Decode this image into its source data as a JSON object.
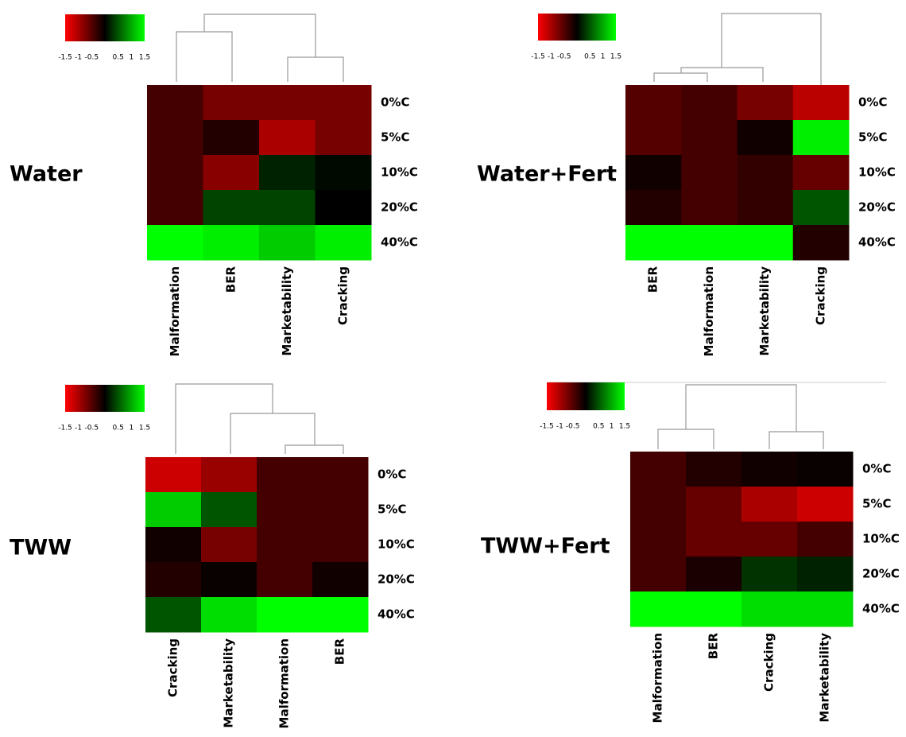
{
  "chart_data": [
    {
      "type": "heatmap",
      "title": "Water",
      "x": [
        "Malformation",
        "BER",
        "Marketability",
        "Cracking"
      ],
      "y": [
        "0%C",
        "5%C",
        "10%C",
        "20%C",
        "40%C"
      ],
      "values": [
        [
          -0.4,
          -0.7,
          -0.7,
          -0.7
        ],
        [
          -0.4,
          -0.2,
          -1.0,
          -0.7
        ],
        [
          -0.4,
          -0.8,
          0.2,
          0.05
        ],
        [
          -0.4,
          0.4,
          0.4,
          0.0
        ],
        [
          1.5,
          1.4,
          1.2,
          1.4
        ]
      ],
      "zlim": [
        -1.5,
        1.5
      ],
      "zticks": [
        -1.5,
        -1,
        -0.5,
        0.5,
        1,
        1.5
      ],
      "colors": [
        "#ff0000",
        "#000000",
        "#00ff00"
      ]
    },
    {
      "type": "heatmap",
      "title": "Water+Fert",
      "x": [
        "BER",
        "Malformation",
        "Marketability",
        "Cracking"
      ],
      "y": [
        "0%C",
        "5%C",
        "10%C",
        "20%C",
        "40%C"
      ],
      "values": [
        [
          -0.5,
          -0.4,
          -0.7,
          -1.1
        ],
        [
          -0.5,
          -0.4,
          -0.1,
          1.4
        ],
        [
          -0.1,
          -0.4,
          -0.3,
          -0.6
        ],
        [
          -0.2,
          -0.4,
          -0.3,
          0.5
        ],
        [
          1.5,
          1.5,
          1.5,
          -0.2
        ]
      ],
      "zlim": [
        -1.5,
        1.5
      ],
      "zticks": [
        -1.5,
        -1,
        -0.5,
        0.5,
        1,
        1.5
      ],
      "colors": [
        "#ff0000",
        "#000000",
        "#00ff00"
      ]
    },
    {
      "type": "heatmap",
      "title": "TWW",
      "x": [
        "Cracking",
        "Marketability",
        "Malformation",
        "BER"
      ],
      "y": [
        "0%C",
        "5%C",
        "10%C",
        "20%C",
        "40%C"
      ],
      "values": [
        [
          -1.2,
          -0.9,
          -0.4,
          -0.4
        ],
        [
          1.2,
          0.5,
          -0.4,
          -0.4
        ],
        [
          -0.1,
          -0.7,
          -0.4,
          -0.4
        ],
        [
          -0.2,
          -0.05,
          -0.4,
          -0.1
        ],
        [
          0.5,
          1.3,
          1.5,
          1.5
        ]
      ],
      "zlim": [
        -1.5,
        1.5
      ],
      "zticks": [
        -1.5,
        -1,
        -0.5,
        0.5,
        1,
        1.5
      ],
      "colors": [
        "#ff0000",
        "#000000",
        "#00ff00"
      ]
    },
    {
      "type": "heatmap",
      "title": "TWW+Fert",
      "x": [
        "Malformation",
        "BER",
        "Cracking",
        "Marketability"
      ],
      "y": [
        "0%C",
        "5%C",
        "10%C",
        "20%C",
        "40%C"
      ],
      "values": [
        [
          -0.4,
          -0.2,
          -0.1,
          -0.05
        ],
        [
          -0.4,
          -0.6,
          -1.0,
          -1.2
        ],
        [
          -0.4,
          -0.6,
          -0.6,
          -0.4
        ],
        [
          -0.4,
          -0.15,
          0.3,
          0.2
        ],
        [
          1.5,
          1.5,
          1.3,
          1.3
        ]
      ],
      "zlim": [
        -1.5,
        1.5
      ],
      "zticks": [
        -1.5,
        -1,
        -0.5,
        0.5,
        1,
        1.5
      ],
      "colors": [
        "#ff0000",
        "#000000",
        "#00ff00"
      ]
    }
  ]
}
